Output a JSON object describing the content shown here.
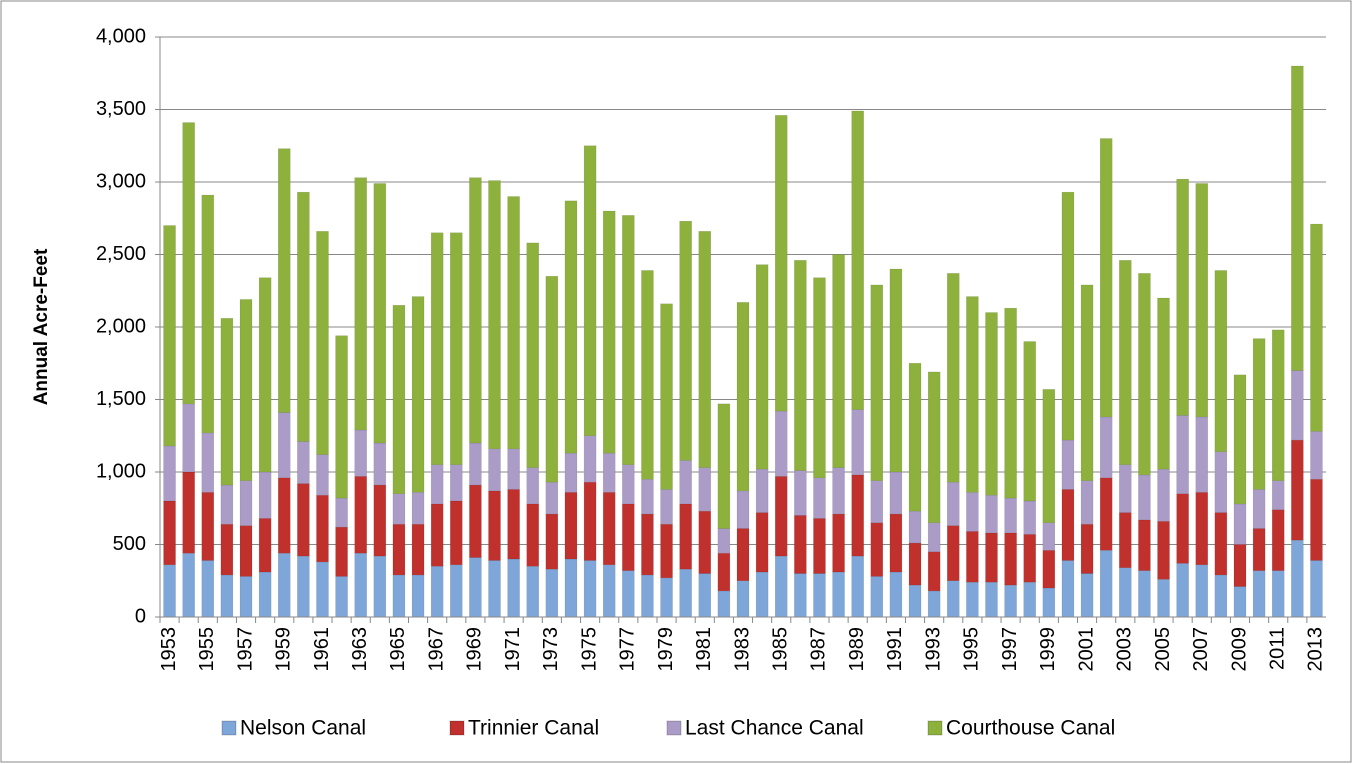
{
  "chart_data": {
    "type": "stacked_bar",
    "y_label": "Annual Acre-Feet",
    "categories": [
      "1953",
      null,
      "1955",
      null,
      "1957",
      null,
      "1959",
      null,
      "1961",
      null,
      "1963",
      null,
      "1965",
      null,
      "1967",
      null,
      "1969",
      null,
      "1971",
      null,
      "1973",
      null,
      "1975",
      null,
      "1977",
      null,
      "1979",
      null,
      "1981",
      null,
      "1983",
      null,
      "1985",
      null,
      "1987",
      null,
      "1989",
      null,
      "1991",
      null,
      "1993",
      null,
      "1995",
      null,
      "1997",
      null,
      "1999",
      null,
      "2001",
      null,
      "2003",
      null,
      "2005",
      null,
      "2007",
      null,
      "2009",
      null,
      "2011",
      null,
      "2013"
    ],
    "series": [
      {
        "name": "Nelson Canal",
        "color": "#7ea6d8",
        "values": [
          360,
          440,
          390,
          290,
          280,
          310,
          440,
          420,
          380,
          280,
          440,
          420,
          290,
          290,
          350,
          360,
          410,
          390,
          400,
          350,
          330,
          400,
          390,
          360,
          320,
          290,
          270,
          330,
          300,
          180,
          250,
          310,
          420,
          300,
          300,
          310,
          420,
          280,
          310,
          220,
          180,
          250,
          240,
          240,
          220,
          240,
          200,
          390,
          300,
          460,
          340,
          320,
          260,
          370,
          360,
          290,
          210,
          320,
          320,
          530,
          390
        ]
      },
      {
        "name": "Trinnier Canal",
        "color": "#c0302c",
        "values": [
          440,
          560,
          470,
          350,
          350,
          370,
          520,
          500,
          460,
          340,
          530,
          490,
          350,
          350,
          430,
          440,
          500,
          480,
          480,
          430,
          380,
          460,
          540,
          500,
          460,
          420,
          370,
          450,
          430,
          260,
          360,
          410,
          550,
          400,
          380,
          400,
          560,
          370,
          400,
          290,
          270,
          380,
          350,
          340,
          360,
          330,
          260,
          490,
          340,
          500,
          380,
          350,
          400,
          480,
          500,
          430,
          290,
          290,
          420,
          690,
          560
        ]
      },
      {
        "name": "Last Chance Canal",
        "color": "#aa9cc6",
        "values": [
          380,
          470,
          410,
          270,
          310,
          320,
          450,
          290,
          280,
          200,
          320,
          290,
          210,
          220,
          270,
          250,
          290,
          290,
          280,
          250,
          220,
          270,
          320,
          270,
          270,
          240,
          240,
          300,
          300,
          170,
          260,
          300,
          450,
          310,
          280,
          320,
          450,
          290,
          290,
          220,
          200,
          300,
          270,
          260,
          240,
          230,
          190,
          340,
          300,
          420,
          330,
          310,
          360,
          540,
          520,
          420,
          280,
          270,
          200,
          480,
          330
        ]
      },
      {
        "name": "Courthouse Canal",
        "color": "#8db13c",
        "values": [
          1520,
          1940,
          1640,
          1150,
          1250,
          1340,
          1820,
          1720,
          1540,
          1120,
          1740,
          1790,
          1300,
          1350,
          1600,
          1600,
          1830,
          1850,
          1740,
          1550,
          1420,
          1740,
          2000,
          1670,
          1720,
          1440,
          1280,
          1650,
          1630,
          860,
          1300,
          1410,
          2040,
          1450,
          1380,
          1470,
          2060,
          1350,
          1400,
          1020,
          1040,
          1440,
          1350,
          1260,
          1310,
          1100,
          920,
          1710,
          1350,
          1920,
          1410,
          1390,
          1180,
          1630,
          1610,
          1250,
          890,
          1040,
          1040,
          2100,
          1430
        ]
      }
    ],
    "ylim": [
      0,
      4000
    ],
    "yticks": [
      0,
      500,
      {
        "value": 1000,
        "label": "1,000"
      },
      {
        "value": 1500,
        "label": "1,500"
      },
      {
        "value": 2000,
        "label": "2,000"
      },
      {
        "value": 2500,
        "label": "2,500"
      },
      {
        "value": 3000,
        "label": "3,000"
      },
      {
        "value": 3500,
        "label": "3,500"
      },
      {
        "value": 4000,
        "label": "4,000"
      }
    ],
    "grid": true
  }
}
